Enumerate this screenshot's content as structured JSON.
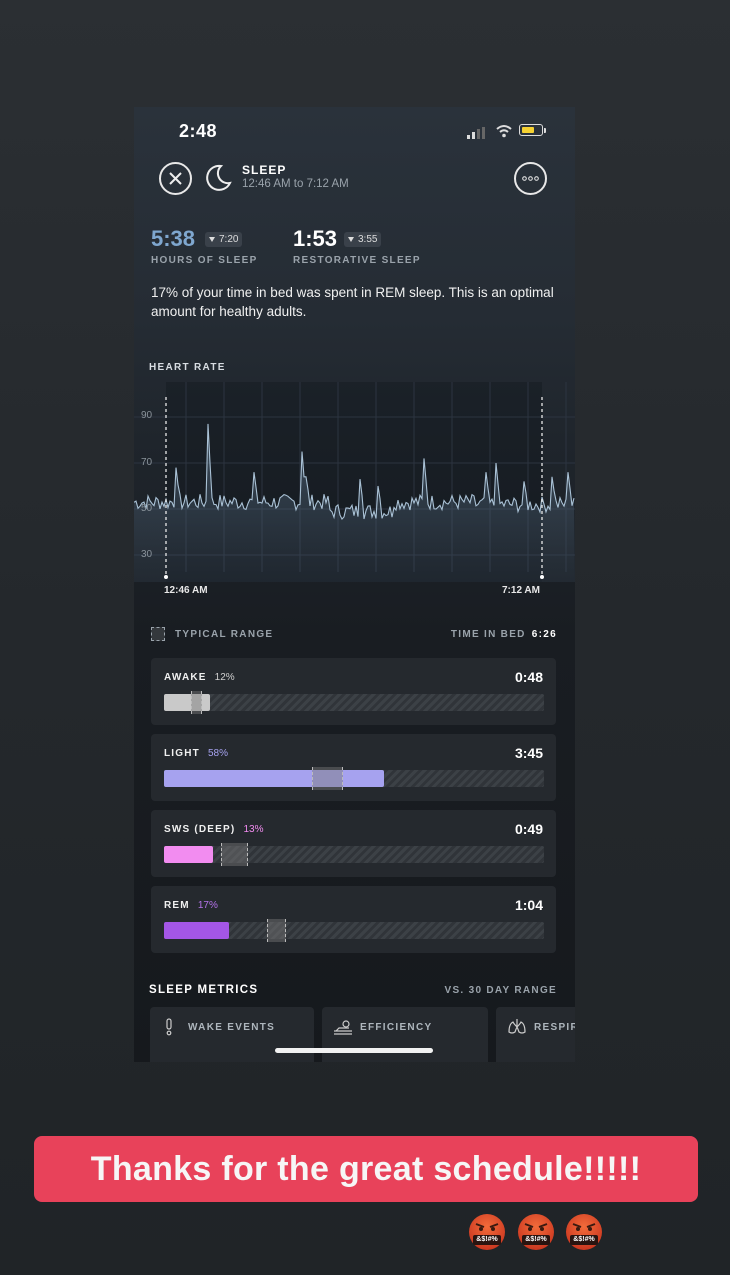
{
  "status_bar": {
    "time": "2:48"
  },
  "header": {
    "title": "SLEEP",
    "subtitle": "12:46 AM to 7:12 AM"
  },
  "summary": {
    "hours_of_sleep": {
      "value": "5:38",
      "delta": "7:20",
      "label": "HOURS OF SLEEP",
      "color": "#7fa7cf"
    },
    "restorative_sleep": {
      "value": "1:53",
      "delta": "3:55",
      "label": "RESTORATIVE SLEEP"
    }
  },
  "insight": "17% of your time in bed was spent in REM sleep. This is an optimal amount for healthy adults.",
  "heart_rate": {
    "label": "HEART RATE",
    "y_ticks": [
      "90",
      "70",
      "50",
      "30"
    ],
    "start_label": "12:46 AM",
    "end_label": "7:12 AM"
  },
  "legend": {
    "typical_range": "TYPICAL RANGE",
    "time_in_bed_label": "TIME IN BED",
    "time_in_bed_value": "6:26"
  },
  "stages": [
    {
      "name": "AWAKE",
      "pct": "12%",
      "duration": "0:48",
      "fraction": 0.12,
      "color": "#c9c9c9",
      "pct_color": "#cfcfcf",
      "range": [
        0.07,
        0.1
      ]
    },
    {
      "name": "LIGHT",
      "pct": "58%",
      "duration": "3:45",
      "fraction": 0.58,
      "color": "#a6a2ef",
      "pct_color": "#a6a2ef",
      "range": [
        0.39,
        0.47
      ]
    },
    {
      "name": "SWS (DEEP)",
      "pct": "13%",
      "duration": "0:49",
      "fraction": 0.13,
      "color": "#f28cf0",
      "pct_color": "#f28cf0",
      "range": [
        0.15,
        0.22
      ]
    },
    {
      "name": "REM",
      "pct": "17%",
      "duration": "1:04",
      "fraction": 0.17,
      "color": "#a456e6",
      "pct_color": "#b473ea",
      "range": [
        0.27,
        0.32
      ]
    }
  ],
  "metrics": {
    "title": "SLEEP METRICS",
    "range_label": "VS. 30 DAY RANGE",
    "cards": [
      {
        "label": "WAKE EVENTS",
        "icon": "exclamation-icon"
      },
      {
        "label": "EFFICIENCY",
        "icon": "bed-person-icon"
      },
      {
        "label": "RESPIR",
        "icon": "lungs-icon"
      }
    ]
  },
  "banner": {
    "text": "Thanks for the great schedule!!!!!",
    "color": "#e8425a"
  },
  "emojis": [
    {
      "icon": "swearing-face-icon",
      "text": "&$!#%"
    },
    {
      "icon": "swearing-face-icon",
      "text": "&$!#%"
    },
    {
      "icon": "swearing-face-icon",
      "text": "&$!#%"
    }
  ]
}
